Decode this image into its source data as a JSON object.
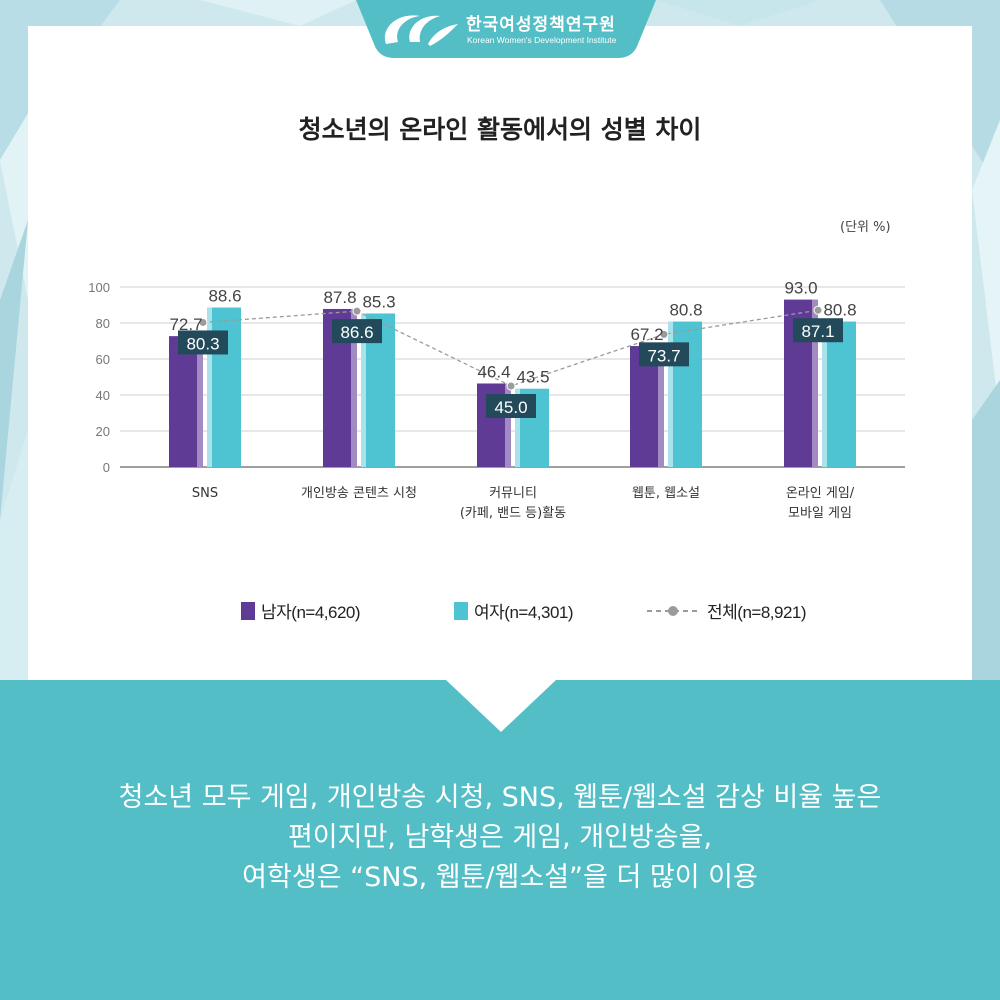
{
  "org": {
    "name": "한국여성정책연구원",
    "name_en": "Korean Women's Development Institute"
  },
  "unit": "(단위 %)",
  "chart_data": {
    "type": "bar",
    "title": "청소년의 온라인 활동에서의 성별 차이",
    "categories": [
      [
        "SNS"
      ],
      [
        "개인방송 콘텐츠 시청"
      ],
      [
        "커뮤니티",
        "(카페, 밴드 등)활동"
      ],
      [
        "웹툰, 웹소설"
      ],
      [
        "온라인 게임/",
        "모바일 게임"
      ]
    ],
    "series": [
      {
        "name": "남자(n=4,620)",
        "type": "bar",
        "color": "#5f3b96",
        "values": [
          72.7,
          87.8,
          46.4,
          67.2,
          93.0
        ],
        "labels": [
          "72.7",
          "87.8",
          "46.4",
          "67.2",
          "93.0"
        ]
      },
      {
        "name": "여자(n=4,301)",
        "type": "bar",
        "color": "#4ec3d2",
        "values": [
          88.6,
          85.3,
          43.5,
          80.8,
          80.8
        ],
        "labels": [
          "88.6",
          "85.3",
          "43.5",
          "80.8",
          "80.8"
        ]
      },
      {
        "name": "전체(n=8,921)",
        "type": "line",
        "style": "dashed",
        "color": "#9b9b9b",
        "values": [
          80.3,
          86.6,
          45.0,
          73.7,
          87.1
        ],
        "labels": [
          "80.3",
          "86.6",
          "45.0",
          "73.7",
          "87.1"
        ]
      }
    ],
    "yticks": [
      "100",
      "80",
      "60",
      "40",
      "20",
      "0"
    ],
    "ylim": [
      0,
      100
    ],
    "grid": true,
    "legend": "bottom"
  },
  "summary": [
    "청소년 모두 게임, 개인방송 시청, SNS, 웹툰/웹소설 감상 비율 높은",
    "편이지만, 남학생은 게임, 개인방송을,",
    "여학생은 “SNS, 웹툰/웹소설”을 더 많이 이용"
  ],
  "colors": {
    "accent": "#53bec6",
    "male": "#5f3b96",
    "female": "#4ec3d2",
    "total": "#9b9b9b",
    "label_box": "#234a5a"
  }
}
